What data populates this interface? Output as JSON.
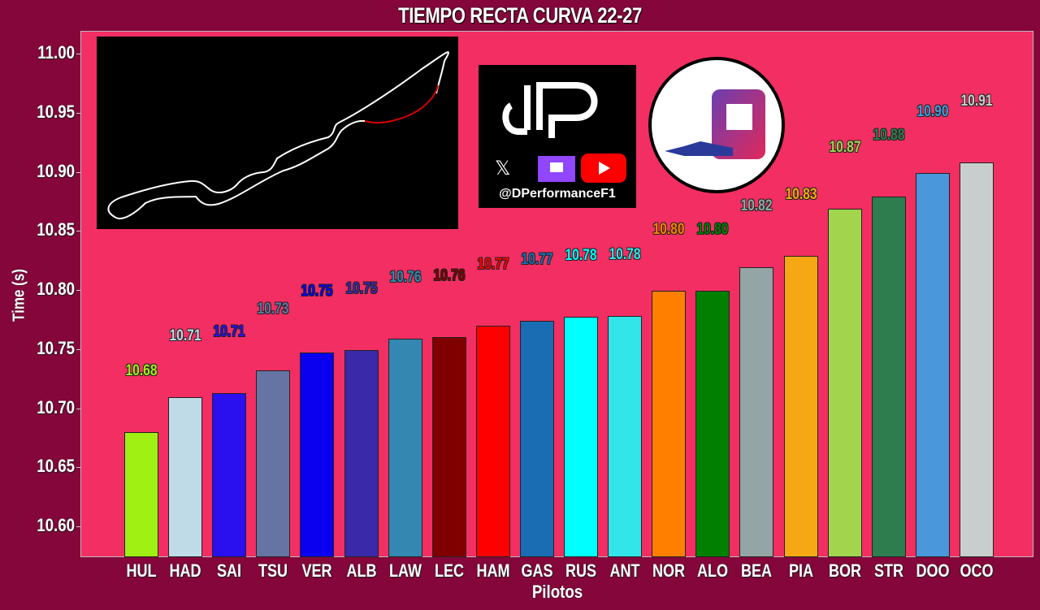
{
  "title": "TIEMPO RECTA CURVA 22-27",
  "watermark": {
    "handle": "@DPerformanceF1",
    "icons": [
      "dp-logo-icon",
      "x-icon",
      "twitch-icon",
      "youtube-icon",
      "g-logo-icon"
    ]
  },
  "inset": {
    "name": "track-map",
    "highlight_color": "#d40000",
    "track_color": "#ffffff"
  },
  "chart_data": {
    "type": "bar",
    "title": "TIEMPO RECTA CURVA 22-27",
    "xlabel": "Pilotos",
    "ylabel": "Time (s)",
    "ylim": [
      10.575,
      11.02
    ],
    "yticks": [
      "10.60",
      "10.65",
      "10.70",
      "10.75",
      "10.80",
      "10.85",
      "10.90",
      "10.95",
      "11.00"
    ],
    "grid": false,
    "legend": null,
    "categories": [
      "HUL",
      "HAD",
      "SAI",
      "TSU",
      "VER",
      "ALB",
      "LAW",
      "LEC",
      "HAM",
      "GAS",
      "RUS",
      "ANT",
      "NOR",
      "ALO",
      "BEA",
      "PIA",
      "BOR",
      "STR",
      "DOO",
      "OCO"
    ],
    "values": [
      10.68,
      10.709,
      10.713,
      10.732,
      10.747,
      10.749,
      10.759,
      10.76,
      10.77,
      10.774,
      10.777,
      10.778,
      10.799,
      10.799,
      10.819,
      10.829,
      10.869,
      10.879,
      10.899,
      10.908
    ],
    "labels": [
      "10.68",
      "10.71",
      "10.71",
      "10.73",
      "10.75",
      "10.75",
      "10.76",
      "10.76",
      "10.77",
      "10.77",
      "10.78",
      "10.78",
      "10.80",
      "10.80",
      "10.82",
      "10.83",
      "10.87",
      "10.88",
      "10.90",
      "10.91"
    ],
    "colors": [
      "#a0f014",
      "#c0dbe8",
      "#2a0fef",
      "#6674a3",
      "#0a00ef",
      "#3a29a8",
      "#3387b0",
      "#800000",
      "#fe0000",
      "#1a6db3",
      "#00ffff",
      "#32e5e8",
      "#ff8000",
      "#007f00",
      "#93a6a5",
      "#f5a813",
      "#a3d44e",
      "#2e7d4f",
      "#4a98db",
      "#c8cdcd"
    ]
  }
}
